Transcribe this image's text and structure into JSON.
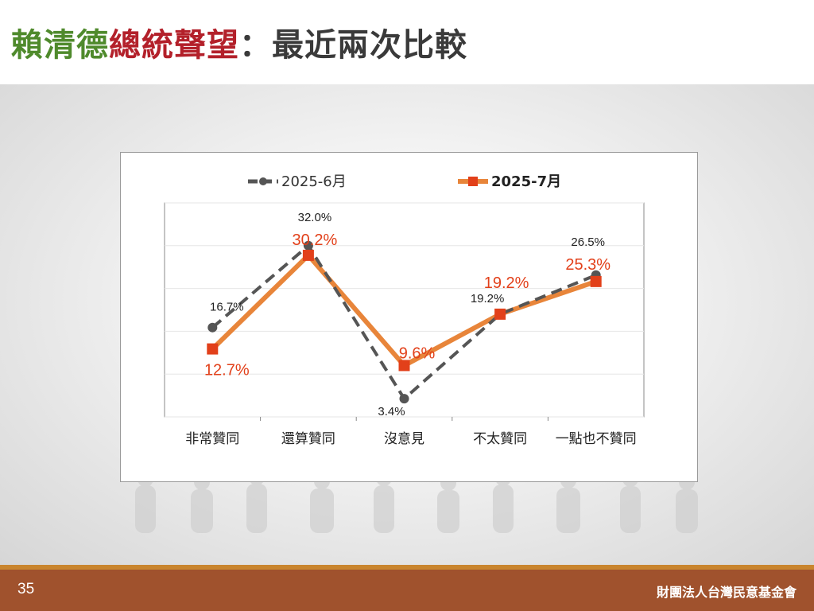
{
  "slide": {
    "title_part1": "賴清德",
    "title_part2": "總統聲望",
    "title_part3": "：最近兩次比較",
    "title_colors": [
      "#4f8a2c",
      "#b3202a",
      "#3a3a3a"
    ],
    "page_number": "35",
    "organization": "財團法人台灣民意基金會"
  },
  "chart_data": {
    "type": "line",
    "title": "",
    "xlabel": "",
    "ylabel": "",
    "ylim": [
      0,
      40
    ],
    "grid": true,
    "legend_position": "top",
    "categories": [
      "非常贊同",
      "還算贊同",
      "沒意見",
      "不太贊同",
      "一點也不贊同"
    ],
    "series": [
      {
        "name": "2025-6月",
        "values": [
          16.7,
          32.0,
          3.4,
          19.2,
          26.5
        ],
        "labels": [
          "16.7%",
          "32.0%",
          "3.4%",
          "19.2%",
          "26.5%"
        ],
        "color": "#555555",
        "line_style": "dashed",
        "marker": "circle"
      },
      {
        "name": "2025-7月",
        "values": [
          12.7,
          30.2,
          9.6,
          19.2,
          25.3
        ],
        "labels": [
          "12.7%",
          "30.2%",
          "9.6%",
          "19.2%",
          "25.3%"
        ],
        "color": "#e8853a",
        "marker_color": "#e2401a",
        "label_color": "#e2401a",
        "line_style": "solid",
        "marker": "square"
      }
    ]
  }
}
